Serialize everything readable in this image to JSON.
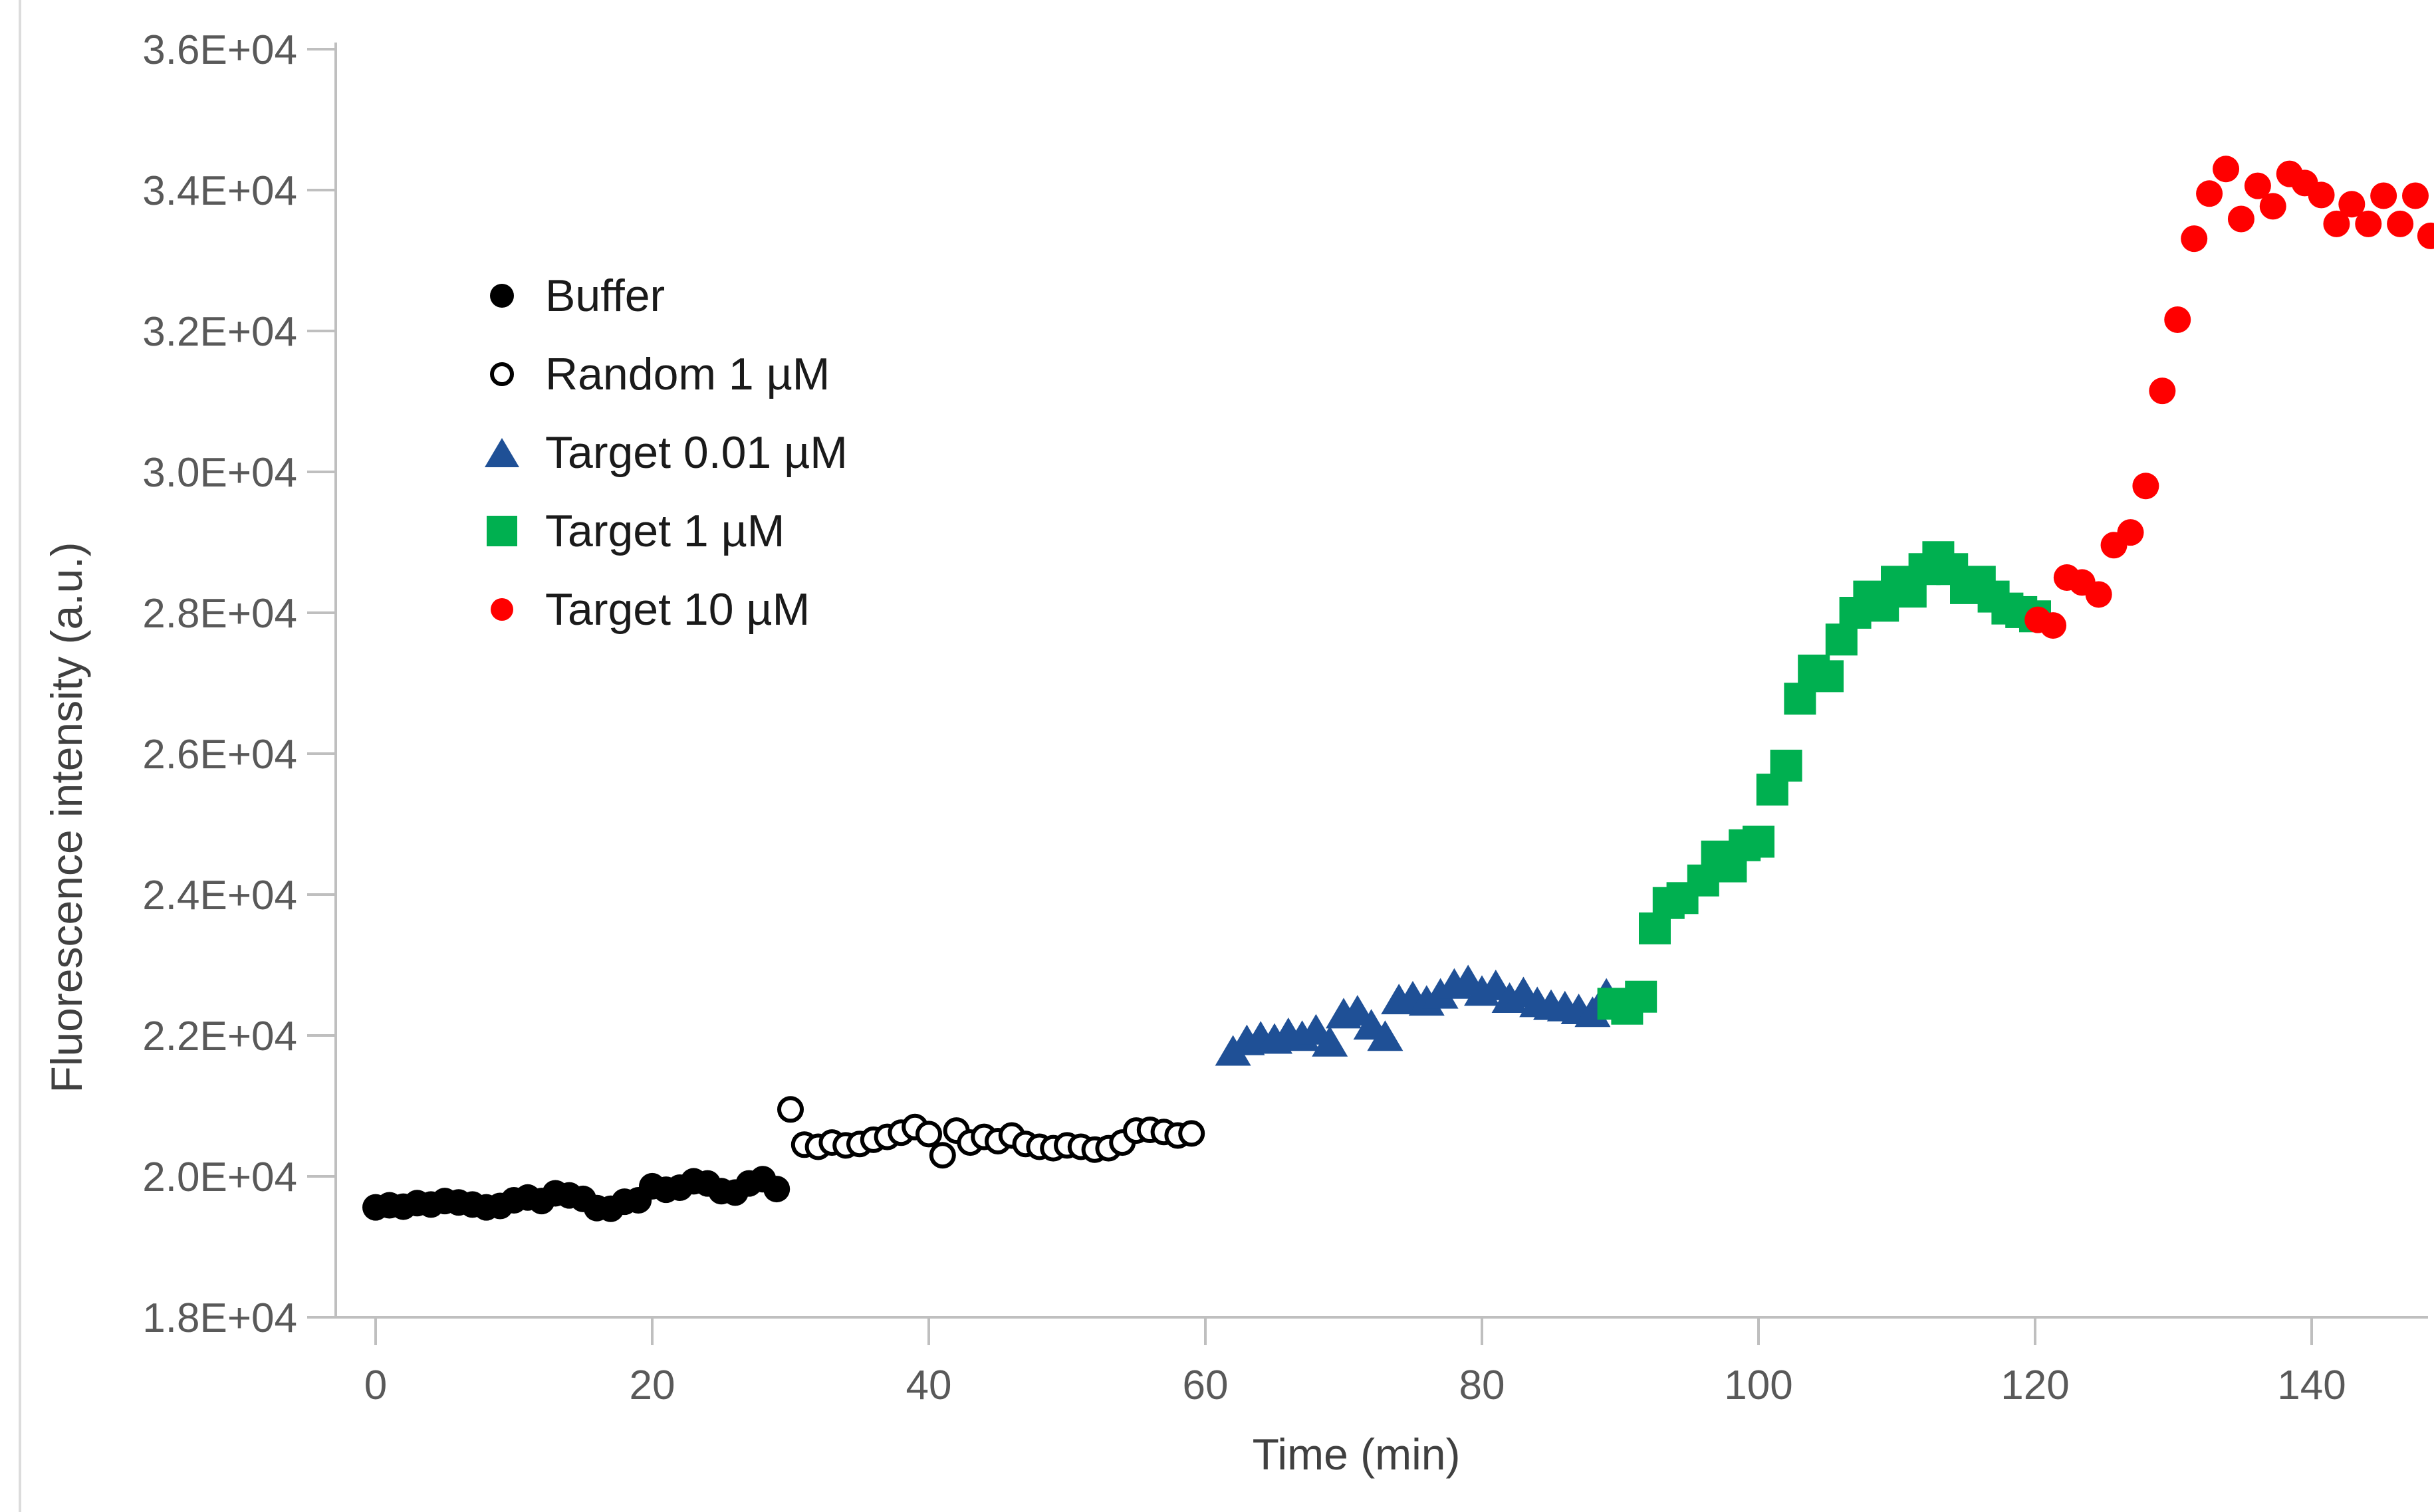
{
  "chart_data": {
    "type": "scatter",
    "title": "",
    "xlabel": "Time (min)",
    "ylabel": "Fluorescence intensity (a.u.)",
    "xlim": [
      0,
      150
    ],
    "ylim": [
      18000,
      36000
    ],
    "x_ticks": [
      0,
      20,
      40,
      60,
      80,
      100,
      120,
      140
    ],
    "y_ticks": [
      18000,
      20000,
      22000,
      24000,
      26000,
      28000,
      30000,
      32000,
      34000,
      36000
    ],
    "y_tick_labels": [
      "1.8E+04",
      "2.0E+04",
      "2.2E+04",
      "2.4E+04",
      "2.6E+04",
      "2.8E+04",
      "3.0E+04",
      "3.2E+04",
      "3.4E+04",
      "3.6E+04"
    ],
    "grid": false,
    "legend_position": "upper-left-inside",
    "axis_color": "#BFBFBF",
    "tick_label_color": "#595959",
    "series": [
      {
        "name": "Buffer",
        "marker": "circle-filled",
        "color": "#000000",
        "points": [
          [
            0,
            19560
          ],
          [
            1,
            19590
          ],
          [
            2,
            19570
          ],
          [
            3,
            19620
          ],
          [
            4,
            19600
          ],
          [
            5,
            19650
          ],
          [
            6,
            19630
          ],
          [
            7,
            19600
          ],
          [
            8,
            19560
          ],
          [
            9,
            19580
          ],
          [
            10,
            19660
          ],
          [
            11,
            19700
          ],
          [
            12,
            19650
          ],
          [
            13,
            19760
          ],
          [
            14,
            19730
          ],
          [
            15,
            19680
          ],
          [
            16,
            19550
          ],
          [
            17,
            19540
          ],
          [
            18,
            19640
          ],
          [
            19,
            19660
          ],
          [
            20,
            19860
          ],
          [
            21,
            19810
          ],
          [
            22,
            19840
          ],
          [
            23,
            19930
          ],
          [
            24,
            19900
          ],
          [
            25,
            19790
          ],
          [
            26,
            19770
          ],
          [
            27,
            19900
          ],
          [
            28,
            19960
          ],
          [
            29,
            19820
          ]
        ]
      },
      {
        "name": "Random 1 µM",
        "marker": "circle-open",
        "color": "#000000",
        "points": [
          [
            30,
            20950
          ],
          [
            31,
            20450
          ],
          [
            32,
            20420
          ],
          [
            33,
            20480
          ],
          [
            34,
            20440
          ],
          [
            35,
            20460
          ],
          [
            36,
            20520
          ],
          [
            37,
            20560
          ],
          [
            38,
            20620
          ],
          [
            39,
            20700
          ],
          [
            40,
            20600
          ],
          [
            41,
            20300
          ],
          [
            42,
            20650
          ],
          [
            43,
            20480
          ],
          [
            44,
            20560
          ],
          [
            45,
            20500
          ],
          [
            46,
            20580
          ],
          [
            47,
            20460
          ],
          [
            48,
            20420
          ],
          [
            49,
            20400
          ],
          [
            50,
            20440
          ],
          [
            51,
            20420
          ],
          [
            52,
            20380
          ],
          [
            53,
            20400
          ],
          [
            54,
            20480
          ],
          [
            55,
            20650
          ],
          [
            56,
            20660
          ],
          [
            57,
            20630
          ],
          [
            58,
            20580
          ],
          [
            59,
            20610
          ]
        ]
      },
      {
        "name": "Target 0.01 µM",
        "marker": "triangle",
        "color": "#1F5096",
        "points": [
          [
            62,
            21750
          ],
          [
            63,
            21900
          ],
          [
            64,
            21950
          ],
          [
            65,
            21920
          ],
          [
            66,
            22000
          ],
          [
            67,
            21960
          ],
          [
            68,
            22050
          ],
          [
            69,
            21880
          ],
          [
            70,
            22280
          ],
          [
            71,
            22320
          ],
          [
            72,
            22120
          ],
          [
            73,
            21960
          ],
          [
            74,
            22480
          ],
          [
            75,
            22520
          ],
          [
            76,
            22460
          ],
          [
            77,
            22560
          ],
          [
            78,
            22700
          ],
          [
            79,
            22750
          ],
          [
            80,
            22600
          ],
          [
            81,
            22680
          ],
          [
            82,
            22500
          ],
          [
            83,
            22580
          ],
          [
            84,
            22440
          ],
          [
            85,
            22400
          ],
          [
            86,
            22380
          ],
          [
            87,
            22340
          ],
          [
            88,
            22300
          ],
          [
            89,
            22560
          ]
        ]
      },
      {
        "name": "Target 1 µM",
        "marker": "square",
        "color": "#00B050",
        "points": [
          [
            89.5,
            22450
          ],
          [
            90.5,
            22380
          ],
          [
            91.5,
            22550
          ],
          [
            92.5,
            23520
          ],
          [
            93.5,
            23880
          ],
          [
            94.5,
            23950
          ],
          [
            96,
            24200
          ],
          [
            97,
            24540
          ],
          [
            98,
            24400
          ],
          [
            99,
            24700
          ],
          [
            100,
            24750
          ],
          [
            101,
            25490
          ],
          [
            102,
            25830
          ],
          [
            103,
            26780
          ],
          [
            104,
            27180
          ],
          [
            105,
            27100
          ],
          [
            106,
            27620
          ],
          [
            107,
            28000
          ],
          [
            108,
            28230
          ],
          [
            109,
            28100
          ],
          [
            110,
            28440
          ],
          [
            111,
            28300
          ],
          [
            112,
            28620
          ],
          [
            113,
            28790
          ],
          [
            114,
            28620
          ],
          [
            115,
            28350
          ],
          [
            116,
            28440
          ],
          [
            117,
            28230
          ],
          [
            118,
            28060
          ],
          [
            119,
            28010
          ],
          [
            120,
            27950
          ]
        ]
      },
      {
        "name": "Target 10 µM",
        "marker": "circle-filled",
        "color": "#FF0000",
        "points": [
          [
            120.2,
            27900
          ],
          [
            121.3,
            27820
          ],
          [
            122.3,
            28500
          ],
          [
            123.4,
            28430
          ],
          [
            124.6,
            28260
          ],
          [
            125.7,
            28960
          ],
          [
            126.9,
            29140
          ],
          [
            128,
            29800
          ],
          [
            129.2,
            31150
          ],
          [
            130.3,
            32160
          ],
          [
            131.5,
            33310
          ],
          [
            132.6,
            33950
          ],
          [
            133.8,
            34300
          ],
          [
            134.9,
            33590
          ],
          [
            136.1,
            34060
          ],
          [
            137.2,
            33770
          ],
          [
            138.4,
            34230
          ],
          [
            139.5,
            34100
          ],
          [
            140.7,
            33930
          ],
          [
            141.8,
            33520
          ],
          [
            142.9,
            33800
          ],
          [
            144.1,
            33520
          ],
          [
            145.2,
            33920
          ],
          [
            146.4,
            33520
          ],
          [
            147.5,
            33920
          ],
          [
            148.6,
            33350
          ]
        ]
      }
    ]
  },
  "legend": {
    "items": [
      {
        "label": "Buffer"
      },
      {
        "label": "Random 1 µM"
      },
      {
        "label": "Target 0.01 µM"
      },
      {
        "label": "Target 1 µM"
      },
      {
        "label": "Target 10 µM"
      }
    ]
  },
  "colors": {
    "background": "#FFFFFF",
    "axis": "#BFBFBF",
    "tick_labels": "#595959",
    "axis_titles": "#404040",
    "buffer": "#000000",
    "random": "#000000",
    "target_001": "#1F5096",
    "target_1": "#00B050",
    "target_10": "#FF0000"
  }
}
